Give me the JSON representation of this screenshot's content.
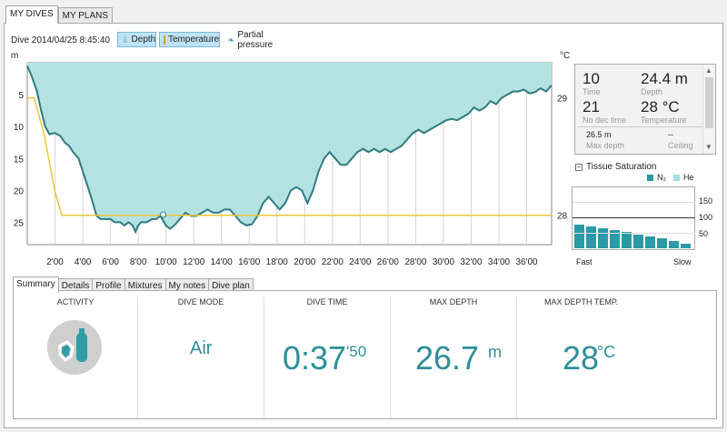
{
  "tabs": [
    "MY DIVES",
    "MY PLANS"
  ],
  "dive_title": "Dive 2014/04/25 8:45:40",
  "toggles": {
    "depth": "Depth",
    "temperature": "Temperature",
    "partial_pressure": "Partial pressure"
  },
  "colors": {
    "depth_fill": "#b4e1e1",
    "depth_line": "#2e7b80",
    "temp_line": "#e8c63a",
    "accent": "#2d8f97",
    "tissue_bar": "#2b9aa6"
  },
  "icons": {
    "depth": "depth-toggle-icon",
    "temperature": "temperature-toggle-icon",
    "partial_pressure": "partial-pressure-icon",
    "scroll_up": "scroll-up-arrow-icon",
    "scroll_down": "scroll-down-arrow-icon",
    "collapse": "collapse-minus-icon",
    "activity": "scuba-mask-tank-icon"
  },
  "chart_data": {
    "type": "area",
    "depth_unit": "m",
    "temp_unit": "°C",
    "y_ticks": [
      "5",
      "10",
      "15",
      "20",
      "25"
    ],
    "temp_ticks": [
      "29",
      "28"
    ],
    "x_ticks": [
      "2'00",
      "4'00",
      "6'00",
      "8'00",
      "10'00",
      "12'00",
      "14'00",
      "16'00",
      "18'00",
      "20'00",
      "22'00",
      "24'00",
      "26'00",
      "28'00",
      "30'00",
      "32'00",
      "34'00",
      "36'00"
    ],
    "x_range_min": [
      0,
      37.8
    ],
    "depth_range_m": [
      0,
      28.5
    ],
    "temp_range_c": [
      27.75,
      29.3
    ],
    "grid": true,
    "depth_series": {
      "name": "Depth",
      "t_min": [
        0,
        0.3,
        0.7,
        1.0,
        1.3,
        1.6,
        2.0,
        2.4,
        2.7,
        3.0,
        3.3,
        3.7,
        4.0,
        4.3,
        4.6,
        5.0,
        5.3,
        5.6,
        6.0,
        6.3,
        6.7,
        7.0,
        7.3,
        7.6,
        7.8,
        8.0,
        8.2,
        8.6,
        9.0,
        9.3,
        9.6,
        10.0,
        10.3,
        10.6,
        11.0,
        11.4,
        11.8,
        12.2,
        12.6,
        13.0,
        13.4,
        13.8,
        14.2,
        14.6,
        15.0,
        15.4,
        15.8,
        16.2,
        16.6,
        17.0,
        17.4,
        17.8,
        18.2,
        18.6,
        19.0,
        19.4,
        19.8,
        20.2,
        20.6,
        21.0,
        21.4,
        21.8,
        22.2,
        22.6,
        23.0,
        23.4,
        23.8,
        24.2,
        24.6,
        25.0,
        25.4,
        25.8,
        26.2,
        26.6,
        27.0,
        27.4,
        27.8,
        28.2,
        28.6,
        29.0,
        29.4,
        29.8,
        30.2,
        30.6,
        31.0,
        31.4,
        31.8,
        32.2,
        32.6,
        33.0,
        33.4,
        33.8,
        34.2,
        34.6,
        35.0,
        35.4,
        35.8,
        36.2,
        36.6,
        37.0,
        37.4,
        37.8
      ],
      "depth_m": [
        0.5,
        2,
        4.5,
        7.5,
        10,
        11.2,
        11.0,
        11.5,
        12.5,
        13,
        14,
        15,
        17,
        19,
        21,
        24,
        24.5,
        24.5,
        24.5,
        25,
        25,
        25.5,
        25,
        25.5,
        26.5,
        25.5,
        25,
        25,
        24.5,
        24.5,
        24,
        25.5,
        26,
        25.5,
        24.5,
        23.5,
        24,
        24,
        23.5,
        23,
        23.5,
        23.5,
        23,
        23,
        24,
        25,
        25.5,
        25.3,
        24,
        22,
        21,
        22,
        23,
        22,
        20,
        19.5,
        20,
        22,
        20,
        17,
        15,
        14,
        15,
        16,
        16,
        15,
        14,
        13.5,
        14,
        13.5,
        14,
        13.5,
        14,
        13.5,
        13,
        12,
        11,
        10.5,
        11,
        10.5,
        10,
        9.5,
        9,
        8.8,
        9,
        8.5,
        8,
        7,
        7.5,
        7,
        6,
        6.5,
        5.5,
        5,
        4.5,
        4.5,
        4.2,
        4.8,
        4.6,
        4,
        4.5,
        3.5
      ]
    },
    "temperature_series": {
      "name": "Temperature",
      "t_min": [
        0,
        0.5,
        1.2,
        2.0,
        2.5,
        37.8
      ],
      "temp_c": [
        29.0,
        29.0,
        28.7,
        28.2,
        28.0,
        28.0
      ]
    },
    "cursor_marker": {
      "t_min": 9.8,
      "depth_m": 23.8
    }
  },
  "readout": {
    "r1": [
      {
        "value": "10",
        "label": "Time"
      },
      {
        "value": "24.4 m",
        "label": "Depth"
      }
    ],
    "r2": [
      {
        "value": "21",
        "label": "No dec time"
      },
      {
        "value": "28 °C",
        "label": "Temperature"
      }
    ],
    "r3": [
      {
        "value": "26.5 m",
        "label": "Max depth"
      },
      {
        "value": "--",
        "label": "Ceiling"
      }
    ]
  },
  "tissue": {
    "title": "Tissue Saturation",
    "legend": [
      "N₂",
      "He"
    ],
    "ticks": [
      "150",
      "100",
      "50"
    ],
    "fast_label": "Fast",
    "slow_label": "Slow",
    "n2_percent": [
      76,
      72,
      64,
      60,
      53,
      44,
      38,
      33,
      24,
      15
    ]
  },
  "bottom_tabs": [
    "Summary",
    "Details",
    "Profile",
    "Mixtures",
    "My notes",
    "Dive plan"
  ],
  "summary": {
    "activity": {
      "header": "ACTIVITY"
    },
    "mode": {
      "header": "DIVE MODE",
      "value": "Air"
    },
    "time": {
      "header": "DIVE TIME",
      "value": "0:37",
      "seconds": "'50"
    },
    "depth": {
      "header": "MAX DEPTH",
      "value": "26.7",
      "unit": "m"
    },
    "temp": {
      "header": "MAX DEPTH TEMP.",
      "value": "28",
      "unit": "°C"
    }
  }
}
